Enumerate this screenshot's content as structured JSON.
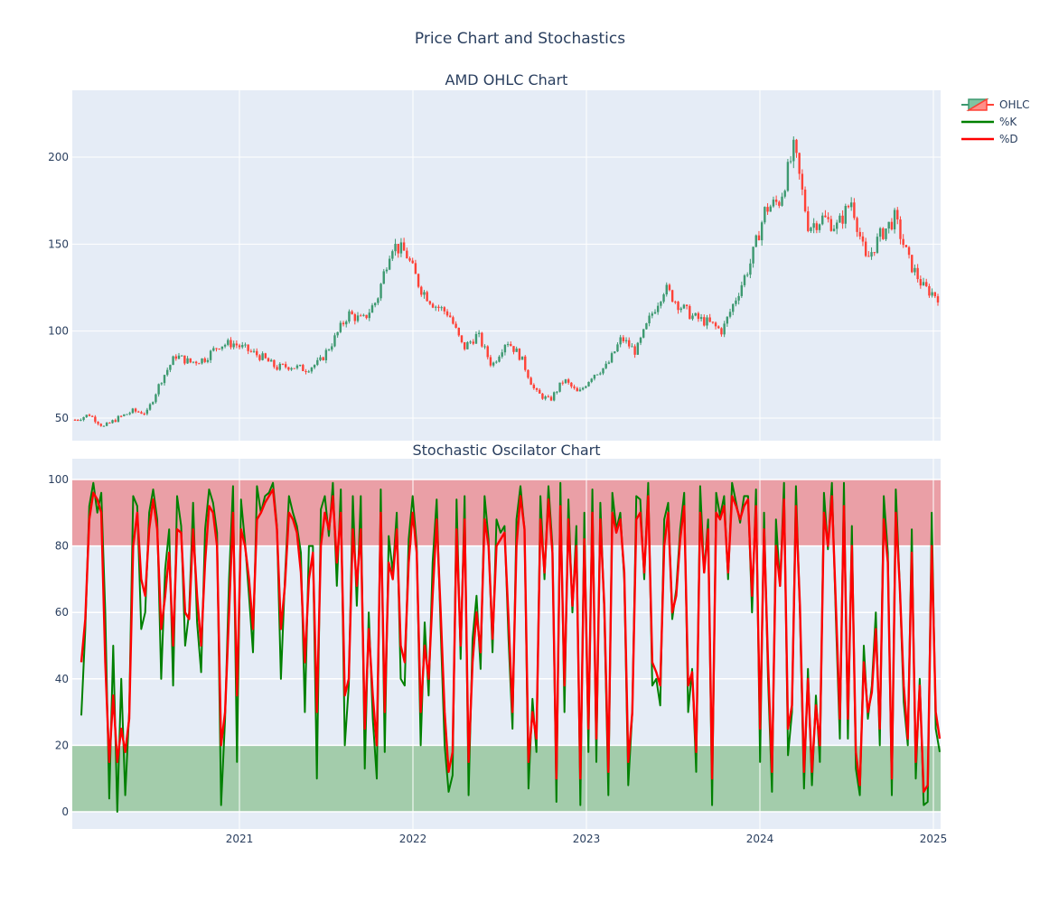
{
  "figure": {
    "title": "Price Chart and Stochastics",
    "background": "#ffffff",
    "plot_background": "#e5ecf6",
    "grid_color": "#ffffff",
    "text_color": "#2a3f5f"
  },
  "legend": {
    "items": [
      {
        "label": "OHLC",
        "symbol": "candlestick",
        "up_color": "#3d9970",
        "down_color": "#ff4136"
      },
      {
        "label": "%K",
        "symbol": "line",
        "color": "#008000"
      },
      {
        "label": "%D",
        "symbol": "line",
        "color": "#ff0000"
      }
    ]
  },
  "chart_data": [
    {
      "type": "candlestick",
      "title": "AMD OHLC Chart",
      "xlabel": "",
      "ylabel": "",
      "x_tick_labels": [
        "2021",
        "2022",
        "2023",
        "2024",
        "2025"
      ],
      "y_tick_labels": [
        "50",
        "100",
        "150",
        "200"
      ],
      "ylim": [
        30,
        235
      ],
      "xlim": [
        "2020-01-02",
        "2025-01-20"
      ],
      "grid": true,
      "up_color": "#3d9970",
      "down_color": "#ff4136",
      "series": [
        {
          "name": "OHLC (approx. close)",
          "x": [
            "2020-01",
            "2020-02",
            "2020-03",
            "2020-04",
            "2020-05",
            "2020-06",
            "2020-07",
            "2020-08",
            "2020-09",
            "2020-10",
            "2020-11",
            "2020-12",
            "2021-01",
            "2021-02",
            "2021-03",
            "2021-04",
            "2021-05",
            "2021-06",
            "2021-07",
            "2021-08",
            "2021-09",
            "2021-10",
            "2021-11",
            "2021-12",
            "2022-01",
            "2022-02",
            "2022-03",
            "2022-04",
            "2022-05",
            "2022-06",
            "2022-07",
            "2022-08",
            "2022-09",
            "2022-10",
            "2022-11",
            "2022-12",
            "2023-01",
            "2023-02",
            "2023-03",
            "2023-04",
            "2023-05",
            "2023-06",
            "2023-07",
            "2023-08",
            "2023-09",
            "2023-10",
            "2023-11",
            "2023-12",
            "2024-01",
            "2024-02",
            "2024-03",
            "2024-04",
            "2024-05",
            "2024-06",
            "2024-07",
            "2024-08",
            "2024-09",
            "2024-10",
            "2024-11",
            "2024-12",
            "2025-01"
          ],
          "values": [
            49,
            52,
            45,
            50,
            54,
            53,
            72,
            86,
            82,
            84,
            92,
            93,
            89,
            85,
            79,
            80,
            78,
            82,
            95,
            110,
            106,
            118,
            150,
            145,
            125,
            115,
            110,
            90,
            98,
            80,
            95,
            85,
            65,
            60,
            72,
            64,
            75,
            80,
            96,
            88,
            108,
            125,
            115,
            108,
            105,
            100,
            120,
            140,
            170,
            175,
            205,
            160,
            165,
            160,
            175,
            140,
            155,
            165,
            140,
            125,
            120
          ]
        }
      ]
    },
    {
      "type": "line",
      "title": "Stochastic Oscilator Chart",
      "xlabel": "",
      "ylabel": "",
      "x_tick_labels": [
        "2021",
        "2022",
        "2023",
        "2024",
        "2025"
      ],
      "y_tick_labels": [
        "0",
        "20",
        "40",
        "60",
        "80",
        "100"
      ],
      "ylim": [
        -5,
        105
      ],
      "grid": true,
      "bands": [
        {
          "name": "overbought",
          "from": 80,
          "to": 100,
          "color": "#ea9fa6"
        },
        {
          "name": "oversold",
          "from": 0,
          "to": 20,
          "color": "#a3ccab"
        }
      ],
      "series": [
        {
          "name": "%K",
          "color": "#008000",
          "values": [
            29,
            55,
            92,
            99,
            90,
            96,
            60,
            4,
            50,
            0,
            40,
            5,
            30,
            95,
            92,
            55,
            60,
            90,
            97,
            88,
            40,
            73,
            85,
            38,
            95,
            86,
            50,
            60,
            93,
            57,
            42,
            85,
            97,
            93,
            84,
            2,
            28,
            70,
            98,
            15,
            94,
            81,
            65,
            48,
            98,
            90,
            95,
            96,
            99,
            86,
            40,
            70,
            95,
            90,
            86,
            78,
            30,
            80,
            80,
            10,
            91,
            95,
            83,
            99,
            68,
            97,
            20,
            38,
            95,
            62,
            95,
            13,
            60,
            28,
            10,
            97,
            18,
            83,
            72,
            90,
            40,
            38,
            82,
            95,
            80,
            20,
            57,
            35,
            75,
            94,
            55,
            20,
            6,
            11,
            94,
            46,
            95,
            5,
            52,
            65,
            43,
            95,
            82,
            48,
            88,
            84,
            86,
            52,
            25,
            88,
            98,
            85,
            7,
            34,
            18,
            95,
            70,
            98,
            80,
            3,
            99,
            30,
            94,
            60,
            86,
            2,
            90,
            18,
            97,
            15,
            93,
            60,
            5,
            96,
            85,
            90,
            70,
            8,
            30,
            95,
            94,
            70,
            99,
            38,
            40,
            32,
            88,
            93,
            58,
            67,
            85,
            96,
            30,
            43,
            12,
            98,
            72,
            88,
            2,
            96,
            89,
            95,
            70,
            99,
            93,
            87,
            95,
            95,
            60,
            97,
            15,
            90,
            40,
            6,
            88,
            68,
            99,
            17,
            30,
            98,
            60,
            7,
            43,
            8,
            35,
            15,
            96,
            79,
            99,
            58,
            22,
            99,
            22,
            86,
            13,
            5,
            50,
            28,
            38,
            60,
            20,
            95,
            78,
            5,
            97,
            68,
            33,
            20,
            85,
            10,
            40,
            2,
            3,
            90,
            25,
            18
          ],
          "ylim": [
            0,
            100
          ]
        },
        {
          "name": "%D",
          "color": "#ff0000",
          "values": [
            45,
            58,
            88,
            96,
            94,
            90,
            45,
            15,
            35,
            15,
            25,
            18,
            28,
            80,
            90,
            70,
            65,
            85,
            94,
            85,
            55,
            65,
            78,
            50,
            85,
            84,
            60,
            58,
            85,
            65,
            50,
            75,
            92,
            90,
            80,
            20,
            30,
            60,
            90,
            35,
            85,
            80,
            70,
            55,
            88,
            90,
            93,
            95,
            97,
            85,
            55,
            68,
            90,
            88,
            84,
            72,
            45,
            70,
            78,
            30,
            80,
            90,
            85,
            95,
            75,
            90,
            35,
            40,
            85,
            68,
            85,
            25,
            55,
            35,
            20,
            90,
            30,
            75,
            70,
            85,
            50,
            45,
            75,
            90,
            78,
            30,
            50,
            40,
            65,
            88,
            60,
            30,
            12,
            18,
            85,
            50,
            88,
            15,
            45,
            60,
            48,
            88,
            80,
            52,
            80,
            82,
            84,
            58,
            30,
            80,
            95,
            85,
            15,
            30,
            22,
            88,
            72,
            94,
            78,
            10,
            92,
            38,
            88,
            62,
            80,
            10,
            82,
            25,
            90,
            22,
            88,
            62,
            12,
            90,
            84,
            88,
            72,
            15,
            30,
            88,
            90,
            72,
            95,
            45,
            42,
            38,
            80,
            90,
            60,
            65,
            82,
            92,
            38,
            42,
            18,
            90,
            72,
            85,
            10,
            90,
            88,
            92,
            72,
            95,
            92,
            88,
            92,
            94,
            65,
            92,
            25,
            85,
            45,
            12,
            80,
            68,
            94,
            25,
            32,
            92,
            62,
            12,
            40,
            12,
            32,
            20,
            90,
            80,
            95,
            62,
            28,
            92,
            28,
            80,
            18,
            8,
            45,
            30,
            36,
            55,
            25,
            88,
            75,
            10,
            90,
            68,
            38,
            22,
            78,
            15,
            38,
            6,
            8,
            80,
            30,
            22
          ],
          "ylim": [
            0,
            100
          ]
        }
      ]
    }
  ]
}
